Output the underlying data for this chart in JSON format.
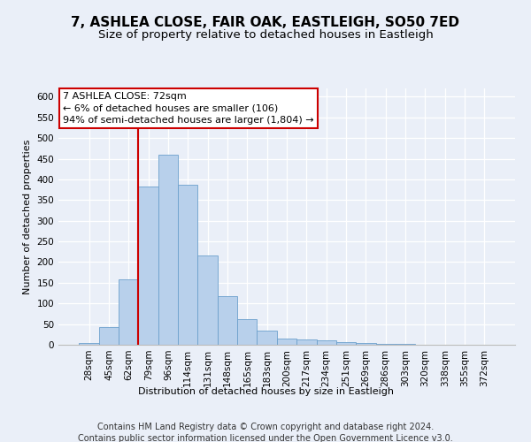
{
  "title": "7, ASHLEA CLOSE, FAIR OAK, EASTLEIGH, SO50 7ED",
  "subtitle": "Size of property relative to detached houses in Eastleigh",
  "xlabel": "Distribution of detached houses by size in Eastleigh",
  "ylabel": "Number of detached properties",
  "categories": [
    "28sqm",
    "45sqm",
    "62sqm",
    "79sqm",
    "96sqm",
    "114sqm",
    "131sqm",
    "148sqm",
    "165sqm",
    "183sqm",
    "200sqm",
    "217sqm",
    "234sqm",
    "251sqm",
    "269sqm",
    "286sqm",
    "303sqm",
    "320sqm",
    "338sqm",
    "355sqm",
    "372sqm"
  ],
  "values": [
    5,
    42,
    158,
    383,
    460,
    388,
    215,
    118,
    62,
    35,
    14,
    13,
    10,
    7,
    5,
    3,
    2,
    1,
    1,
    0,
    0
  ],
  "bar_color": "#b8d0eb",
  "bar_edge_color": "#6ca0cc",
  "vline_color": "#cc0000",
  "vline_pos": 2.5,
  "annotation_text": "7 ASHLEA CLOSE: 72sqm\n← 6% of detached houses are smaller (106)\n94% of semi-detached houses are larger (1,804) →",
  "annotation_box_facecolor": "#ffffff",
  "annotation_box_edgecolor": "#cc0000",
  "ylim": [
    0,
    620
  ],
  "yticks": [
    0,
    50,
    100,
    150,
    200,
    250,
    300,
    350,
    400,
    450,
    500,
    550,
    600
  ],
  "footer_line1": "Contains HM Land Registry data © Crown copyright and database right 2024.",
  "footer_line2": "Contains public sector information licensed under the Open Government Licence v3.0.",
  "bg_color": "#eaeff8",
  "title_fontsize": 11,
  "subtitle_fontsize": 9.5,
  "axis_label_fontsize": 8,
  "tick_fontsize": 7.5,
  "footer_fontsize": 7,
  "annot_fontsize": 8
}
